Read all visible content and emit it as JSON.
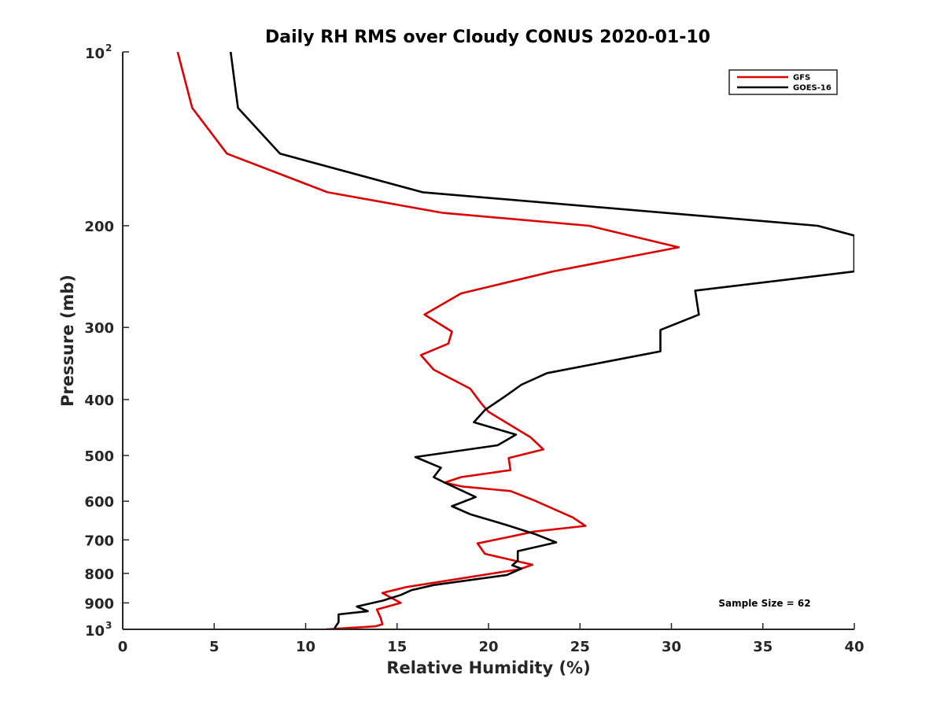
{
  "chart_data": {
    "type": "line",
    "title": "Daily RH RMS over Cloudy CONUS 2020-01-10",
    "xlabel": "Relative Humidity (%)",
    "ylabel": "Pressure (mb)",
    "xlim": [
      0,
      40
    ],
    "ylim": [
      100,
      1000
    ],
    "yscale": "log",
    "y_reversed": true,
    "grid": false,
    "x_ticks": [
      "0",
      "5",
      "10",
      "15",
      "20",
      "25",
      "30",
      "35",
      "40"
    ],
    "y_ticks": [
      {
        "value": 100,
        "base": "10",
        "exp": "2"
      },
      {
        "value": 200,
        "label": "200"
      },
      {
        "value": 300,
        "label": "300"
      },
      {
        "value": 400,
        "label": "400"
      },
      {
        "value": 500,
        "label": "500"
      },
      {
        "value": 600,
        "label": "600"
      },
      {
        "value": 700,
        "label": "700"
      },
      {
        "value": 800,
        "label": "800"
      },
      {
        "value": 900,
        "label": "900"
      },
      {
        "value": 1000,
        "base": "10",
        "exp": "3"
      }
    ],
    "legend_position": "top-right",
    "annotation": "Sample Size = 62",
    "series": [
      {
        "name": "GFS",
        "color": "#dd0000",
        "points": [
          [
            3.0,
            100
          ],
          [
            3.8,
            125
          ],
          [
            5.7,
            150
          ],
          [
            11.2,
            175
          ],
          [
            17.5,
            190
          ],
          [
            25.5,
            200
          ],
          [
            30.4,
            218
          ],
          [
            23.5,
            240
          ],
          [
            18.5,
            262
          ],
          [
            16.5,
            285
          ],
          [
            18.0,
            305
          ],
          [
            17.8,
            320
          ],
          [
            16.3,
            335
          ],
          [
            17.0,
            355
          ],
          [
            19.0,
            383
          ],
          [
            19.6,
            406
          ],
          [
            20.0,
            420
          ],
          [
            22.3,
            465
          ],
          [
            23.0,
            488
          ],
          [
            21.1,
            505
          ],
          [
            21.2,
            530
          ],
          [
            18.5,
            545
          ],
          [
            17.6,
            557
          ],
          [
            18.6,
            566
          ],
          [
            21.2,
            576
          ],
          [
            22.5,
            598
          ],
          [
            24.6,
            640
          ],
          [
            25.3,
            662
          ],
          [
            22.5,
            677
          ],
          [
            21.1,
            692
          ],
          [
            19.4,
            710
          ],
          [
            19.8,
            740
          ],
          [
            22.4,
            773
          ],
          [
            21.7,
            787
          ],
          [
            15.5,
            845
          ],
          [
            14.2,
            865
          ],
          [
            15.2,
            900
          ],
          [
            13.9,
            924
          ],
          [
            14.1,
            955
          ],
          [
            14.2,
            980
          ],
          [
            13.8,
            988
          ],
          [
            11.1,
            1000
          ]
        ]
      },
      {
        "name": "GOES-16",
        "color": "#000000",
        "points": [
          [
            5.9,
            100
          ],
          [
            6.3,
            125
          ],
          [
            8.6,
            150
          ],
          [
            16.4,
            175
          ],
          [
            38.0,
            200
          ],
          [
            40.0,
            208
          ],
          [
            40.0,
            240
          ],
          [
            31.3,
            259
          ],
          [
            31.5,
            285
          ],
          [
            29.4,
            303
          ],
          [
            29.4,
            330
          ],
          [
            23.2,
            360
          ],
          [
            21.8,
            377
          ],
          [
            20.9,
            395
          ],
          [
            19.8,
            417
          ],
          [
            19.2,
            438
          ],
          [
            21.5,
            460
          ],
          [
            20.5,
            480
          ],
          [
            16.0,
            503
          ],
          [
            17.4,
            525
          ],
          [
            17.0,
            545
          ],
          [
            17.6,
            557
          ],
          [
            19.3,
            590
          ],
          [
            18.0,
            612
          ],
          [
            19.0,
            632
          ],
          [
            21.0,
            660
          ],
          [
            22.6,
            685
          ],
          [
            23.7,
            707
          ],
          [
            21.6,
            732
          ],
          [
            21.6,
            760
          ],
          [
            21.3,
            775
          ],
          [
            21.8,
            785
          ],
          [
            21.0,
            805
          ],
          [
            17.0,
            838
          ],
          [
            15.8,
            855
          ],
          [
            15.2,
            872
          ],
          [
            14.2,
            892
          ],
          [
            12.8,
            913
          ],
          [
            13.4,
            930
          ],
          [
            11.8,
            942
          ],
          [
            11.8,
            972
          ],
          [
            11.6,
            993
          ],
          [
            11.6,
            1000
          ]
        ]
      }
    ]
  }
}
